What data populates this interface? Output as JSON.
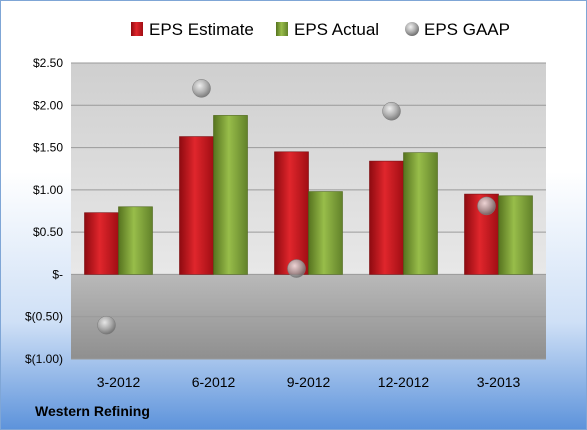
{
  "chart_data": {
    "type": "bar",
    "company": "Western Refining",
    "categories": [
      "3-2012",
      "6-2012",
      "9-2012",
      "12-2012",
      "3-2013"
    ],
    "series": [
      {
        "name": "EPS Estimate",
        "kind": "bar",
        "color": "#c8161e",
        "values": [
          0.73,
          1.63,
          1.45,
          1.34,
          0.95
        ]
      },
      {
        "name": "EPS Actual",
        "kind": "bar",
        "color": "#7fa03a",
        "values": [
          0.8,
          1.88,
          0.98,
          1.44,
          0.93
        ]
      },
      {
        "name": "EPS GAAP",
        "kind": "point",
        "color": "#a8a8a8",
        "values": [
          -0.6,
          2.2,
          0.07,
          1.93,
          0.81
        ]
      }
    ],
    "y_ticks": [
      {
        "value": 2.5,
        "label": "$2.50"
      },
      {
        "value": 2.0,
        "label": "$2.00"
      },
      {
        "value": 1.5,
        "label": "$1.50"
      },
      {
        "value": 1.0,
        "label": "$1.00"
      },
      {
        "value": 0.5,
        "label": "$0.50"
      },
      {
        "value": 0.0,
        "label": "$-"
      },
      {
        "value": -0.5,
        "label": "$(0.50)"
      },
      {
        "value": -1.0,
        "label": "$(1.00)"
      }
    ],
    "ylim": [
      -1.0,
      2.5
    ],
    "grid": true,
    "legend_position": "top"
  }
}
